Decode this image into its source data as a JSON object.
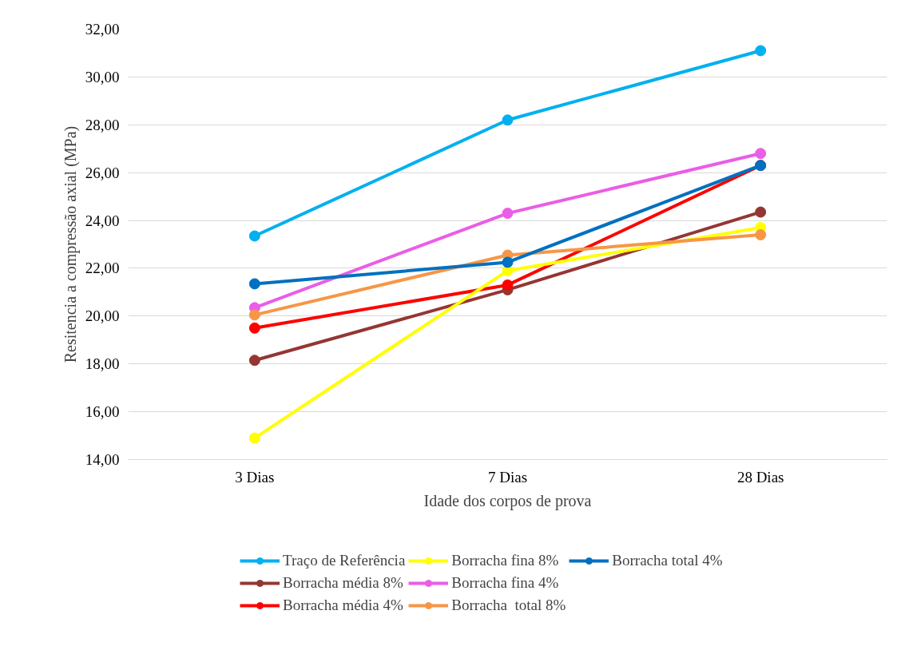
{
  "chart_data": {
    "type": "line",
    "xlabel": "Idade dos corpos de prova",
    "ylabel": "Resitencia a compressão axial (MPa)",
    "categories": [
      "3 Dias",
      "7 Dias",
      "28 Dias"
    ],
    "series": [
      {
        "name": "Traço de Referência",
        "color": "#00b0f0",
        "values": [
          23.35,
          28.2,
          31.1
        ]
      },
      {
        "name": "Borracha média 8%",
        "color": "#943634",
        "values": [
          18.15,
          21.1,
          24.35
        ]
      },
      {
        "name": "Borracha média 4%",
        "color": "#ff0000",
        "values": [
          19.5,
          21.3,
          26.3
        ]
      },
      {
        "name": "Borracha fina 8%",
        "color": "#ffff00",
        "values": [
          14.9,
          21.9,
          23.7
        ]
      },
      {
        "name": "Borracha fina 4%",
        "color": "#ea5de6",
        "values": [
          20.35,
          24.3,
          26.8
        ]
      },
      {
        "name": "Borracha  total 8%",
        "color": "#f79646",
        "values": [
          20.05,
          22.55,
          23.4
        ]
      },
      {
        "name": "Borracha total 4%",
        "color": "#0070c0",
        "values": [
          21.35,
          22.25,
          26.3
        ]
      }
    ],
    "ylim": [
      14,
      32
    ],
    "yticks": [
      {
        "value": 14,
        "label": "14,00"
      },
      {
        "value": 16,
        "label": "16,00"
      },
      {
        "value": 18,
        "label": "18,00"
      },
      {
        "value": 20,
        "label": "20,00"
      },
      {
        "value": 22,
        "label": "22,00"
      },
      {
        "value": 24,
        "label": "24,00"
      },
      {
        "value": 26,
        "label": "26,00"
      },
      {
        "value": 28,
        "label": "28,00"
      },
      {
        "value": 30,
        "label": "30,00"
      },
      {
        "value": 32,
        "label": "32,00"
      }
    ],
    "grid": "y",
    "legend": "bottom",
    "marker": "circle",
    "line_style": "solid"
  }
}
